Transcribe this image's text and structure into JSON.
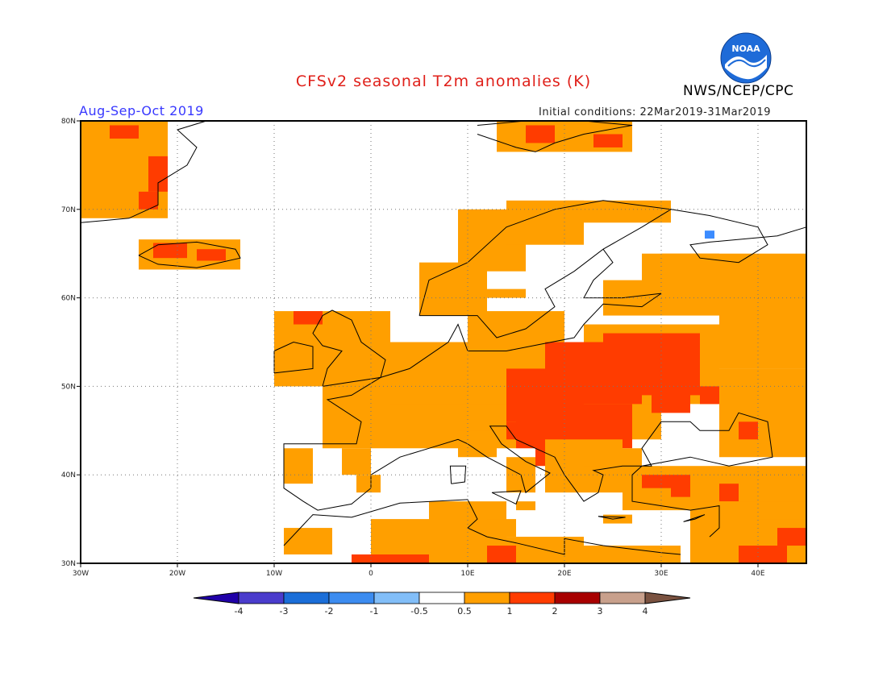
{
  "header": {
    "title": "CFSv2 seasonal T2m anomalies (K)",
    "org": "NWS/NCEP/CPC",
    "period": "Aug-Sep-Oct 2019",
    "init": "Initial conditions: 22Mar2019-31Mar2019",
    "logo_text": "NOAA"
  },
  "colors": {
    "title": "#e0201a",
    "period": "#3838ff",
    "positive_05_1": "#ff9f00",
    "positive_1_2": "#ff3c00",
    "neutral": "#ffffff",
    "negative_small": "#3c8cff",
    "land_outline": "#000000",
    "noaa_blue": "#1e6bd8"
  },
  "map": {
    "projection": "lat-lon",
    "lon_range": [
      -30,
      45
    ],
    "lat_range": [
      30,
      80
    ],
    "lon_ticks": [
      "30W",
      "20W",
      "10W",
      "0",
      "10E",
      "20E",
      "30E",
      "40E"
    ],
    "lat_ticks": [
      "30N",
      "40N",
      "50N",
      "60N",
      "70N",
      "80N"
    ],
    "grid": "dotted"
  },
  "legend": {
    "boundaries": [
      "-4",
      "-3",
      "-2",
      "-1",
      "-0.5",
      "0.5",
      "1",
      "2",
      "3",
      "4"
    ],
    "colors": [
      "#2000a8",
      "#4a3ccc",
      "#1b6ed8",
      "#3c8cf0",
      "#82bef8",
      "#ffffff",
      "#ff9f00",
      "#ff3c00",
      "#a80000",
      "#c8a08c",
      "#7a5240"
    ]
  }
}
